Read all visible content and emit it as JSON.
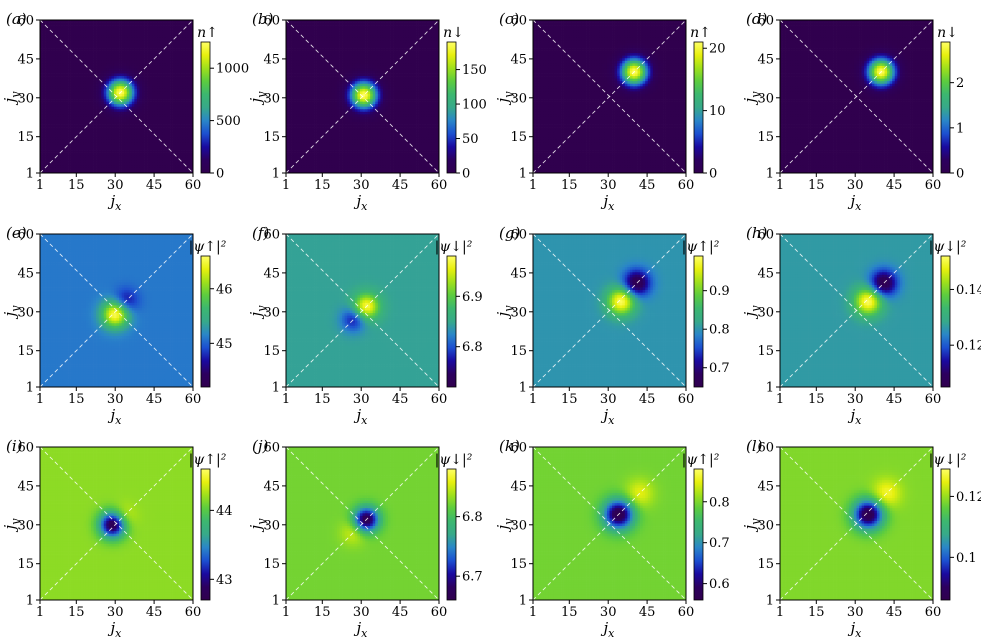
{
  "figure": {
    "xlabel": "jx",
    "ylabel": "jy",
    "tick_labels": [
      "1",
      "15",
      "30",
      "45",
      "60"
    ],
    "colormap": [
      "#30004e",
      "#2c005f",
      "#1a0aa0",
      "#1c4fd0",
      "#2a86c8",
      "#37a98a",
      "#3cb770",
      "#5ccc3f",
      "#9fe01c",
      "#e7f00e",
      "#ffff66"
    ]
  },
  "chart_data": [
    {
      "type": "heatmap",
      "panel_label": "(a)",
      "colorbar_title": "n↑",
      "xlabel": "jx",
      "ylabel": "jy",
      "xlim": [
        1,
        60
      ],
      "ylim": [
        1,
        60
      ],
      "xticks": [
        1,
        15,
        30,
        45,
        60
      ],
      "yticks": [
        1,
        15,
        30,
        45,
        60
      ],
      "cbar_range": [
        0,
        1250
      ],
      "cbar_ticks": [
        0,
        500,
        1000
      ],
      "background_level": 0,
      "blobs": [
        {
          "x": 32,
          "y": 32,
          "sigma": 3.6,
          "amp": 1250
        }
      ]
    },
    {
      "type": "heatmap",
      "panel_label": "(b)",
      "colorbar_title": "n↓",
      "xlabel": "jx",
      "ylabel": "jy",
      "xlim": [
        1,
        60
      ],
      "ylim": [
        1,
        60
      ],
      "xticks": [
        1,
        15,
        30,
        45,
        60
      ],
      "yticks": [
        1,
        15,
        30,
        45,
        60
      ],
      "cbar_range": [
        0,
        190
      ],
      "cbar_ticks": [
        0,
        50,
        100,
        150
      ],
      "background_level": 0,
      "blobs": [
        {
          "x": 31,
          "y": 31,
          "sigma": 3.6,
          "amp": 190
        }
      ]
    },
    {
      "type": "heatmap",
      "panel_label": "(c)",
      "colorbar_title": "n↑",
      "xlabel": "jx",
      "ylabel": "jy",
      "xlim": [
        1,
        60
      ],
      "ylim": [
        1,
        60
      ],
      "xticks": [
        1,
        15,
        30,
        45,
        60
      ],
      "yticks": [
        1,
        15,
        30,
        45,
        60
      ],
      "cbar_range": [
        0,
        21
      ],
      "cbar_ticks": [
        0,
        10,
        20
      ],
      "background_level": 0,
      "blobs": [
        {
          "x": 40,
          "y": 40,
          "sigma": 3.6,
          "amp": 21
        }
      ]
    },
    {
      "type": "heatmap",
      "panel_label": "(d)",
      "colorbar_title": "n↓",
      "xlabel": "jx",
      "ylabel": "jy",
      "xlim": [
        1,
        60
      ],
      "ylim": [
        1,
        60
      ],
      "xticks": [
        1,
        15,
        30,
        45,
        60
      ],
      "yticks": [
        1,
        15,
        30,
        45,
        60
      ],
      "cbar_range": [
        0,
        2.9
      ],
      "cbar_ticks": [
        0,
        1,
        2
      ],
      "background_level": 0,
      "blobs": [
        {
          "x": 40,
          "y": 40,
          "sigma": 3.6,
          "amp": 2.9
        }
      ]
    },
    {
      "type": "heatmap",
      "panel_label": "(e)",
      "colorbar_title": "|ψ↑|²",
      "xlabel": "jx",
      "ylabel": "jy",
      "xlim": [
        1,
        60
      ],
      "ylim": [
        1,
        60
      ],
      "xticks": [
        1,
        15,
        30,
        45,
        60
      ],
      "yticks": [
        1,
        15,
        30,
        45,
        60
      ],
      "cbar_range": [
        44.2,
        46.6
      ],
      "cbar_ticks": [
        45,
        46
      ],
      "background_level": 45.1,
      "blobs": [
        {
          "x": 30,
          "y": 29,
          "sigma": 3.6,
          "amp": 1.5
        },
        {
          "x": 34,
          "y": 34,
          "sigma": 3.3,
          "amp": -0.5
        }
      ]
    },
    {
      "type": "heatmap",
      "panel_label": "(f)",
      "colorbar_title": "|ψ↓|²",
      "xlabel": "jx",
      "ylabel": "jy",
      "xlim": [
        1,
        60
      ],
      "ylim": [
        1,
        60
      ],
      "xticks": [
        1,
        15,
        30,
        45,
        60
      ],
      "yticks": [
        1,
        15,
        30,
        45,
        60
      ],
      "cbar_range": [
        6.72,
        6.98
      ],
      "cbar_ticks": [
        6.8,
        6.9
      ],
      "background_level": 6.845,
      "blobs": [
        {
          "x": 32,
          "y": 32,
          "sigma": 3.4,
          "amp": 0.13
        },
        {
          "x": 27,
          "y": 27,
          "sigma": 3.3,
          "amp": -0.07
        }
      ]
    },
    {
      "type": "heatmap",
      "panel_label": "(g)",
      "colorbar_title": "|ψ↑|²",
      "xlabel": "jx",
      "ylabel": "jy",
      "xlim": [
        1,
        60
      ],
      "ylim": [
        1,
        60
      ],
      "xticks": [
        1,
        15,
        30,
        45,
        60
      ],
      "yticks": [
        1,
        15,
        30,
        45,
        60
      ],
      "cbar_range": [
        0.65,
        0.99
      ],
      "cbar_ticks": [
        0.7,
        0.8,
        0.9
      ],
      "background_level": 0.8,
      "blobs": [
        {
          "x": 35,
          "y": 34,
          "sigma": 3.7,
          "amp": 0.19
        },
        {
          "x": 41,
          "y": 41,
          "sigma": 3.6,
          "amp": -0.15
        }
      ]
    },
    {
      "type": "heatmap",
      "panel_label": "(h)",
      "colorbar_title": "|ψ↓|²",
      "xlabel": "jx",
      "ylabel": "jy",
      "xlim": [
        1,
        60
      ],
      "ylim": [
        1,
        60
      ],
      "xticks": [
        1,
        15,
        30,
        45,
        60
      ],
      "yticks": [
        1,
        15,
        30,
        45,
        60
      ],
      "cbar_range": [
        0.105,
        0.152
      ],
      "cbar_ticks": [
        0.12,
        0.14
      ],
      "background_level": 0.1265,
      "blobs": [
        {
          "x": 35,
          "y": 34,
          "sigma": 3.7,
          "amp": 0.0255
        },
        {
          "x": 41,
          "y": 41,
          "sigma": 3.6,
          "amp": -0.0215
        }
      ]
    },
    {
      "type": "heatmap",
      "panel_label": "(i)",
      "colorbar_title": "|ψ↑|²",
      "xlabel": "jx",
      "ylabel": "jy",
      "xlim": [
        1,
        60
      ],
      "ylim": [
        1,
        60
      ],
      "xticks": [
        1,
        15,
        30,
        45,
        60
      ],
      "yticks": [
        1,
        15,
        30,
        45,
        60
      ],
      "cbar_range": [
        42.7,
        44.6
      ],
      "cbar_ticks": [
        43,
        44
      ],
      "background_level": 44.17,
      "blobs": [
        {
          "x": 29,
          "y": 30,
          "sigma": 3.5,
          "amp": -1.47
        },
        {
          "x": 33,
          "y": 33,
          "sigma": 3.3,
          "amp": 0.25
        }
      ]
    },
    {
      "type": "heatmap",
      "panel_label": "(j)",
      "colorbar_title": "|ψ↓|²",
      "xlabel": "jx",
      "ylabel": "jy",
      "xlim": [
        1,
        60
      ],
      "ylim": [
        1,
        60
      ],
      "xticks": [
        1,
        15,
        30,
        45,
        60
      ],
      "yticks": [
        1,
        15,
        30,
        45,
        60
      ],
      "cbar_range": [
        6.66,
        6.88
      ],
      "cbar_ticks": [
        6.7,
        6.8
      ],
      "background_level": 6.822,
      "blobs": [
        {
          "x": 32,
          "y": 32,
          "sigma": 3.3,
          "amp": -0.16
        },
        {
          "x": 27,
          "y": 27,
          "sigma": 3.4,
          "amp": 0.03
        }
      ]
    },
    {
      "type": "heatmap",
      "panel_label": "(k)",
      "colorbar_title": "|ψ↑|²",
      "xlabel": "jx",
      "ylabel": "jy",
      "xlim": [
        1,
        60
      ],
      "ylim": [
        1,
        60
      ],
      "xticks": [
        1,
        15,
        30,
        45,
        60
      ],
      "yticks": [
        1,
        15,
        30,
        45,
        60
      ],
      "cbar_range": [
        0.56,
        0.88
      ],
      "cbar_ticks": [
        0.6,
        0.7,
        0.8
      ],
      "background_level": 0.795,
      "blobs": [
        {
          "x": 34,
          "y": 34,
          "sigma": 4.0,
          "amp": -0.235
        },
        {
          "x": 42,
          "y": 42,
          "sigma": 3.8,
          "amp": 0.055
        }
      ]
    },
    {
      "type": "heatmap",
      "panel_label": "(l)",
      "colorbar_title": "|ψ↓|²",
      "xlabel": "jx",
      "ylabel": "jy",
      "xlim": [
        1,
        60
      ],
      "ylim": [
        1,
        60
      ],
      "xticks": [
        1,
        15,
        30,
        45,
        60
      ],
      "yticks": [
        1,
        15,
        30,
        45,
        60
      ],
      "cbar_range": [
        0.086,
        0.129
      ],
      "cbar_ticks": [
        0.1,
        0.12
      ],
      "background_level": 0.1185,
      "blobs": [
        {
          "x": 35,
          "y": 34,
          "sigma": 4.0,
          "amp": -0.0325
        },
        {
          "x": 42,
          "y": 42,
          "sigma": 3.8,
          "amp": 0.0085
        }
      ]
    }
  ]
}
